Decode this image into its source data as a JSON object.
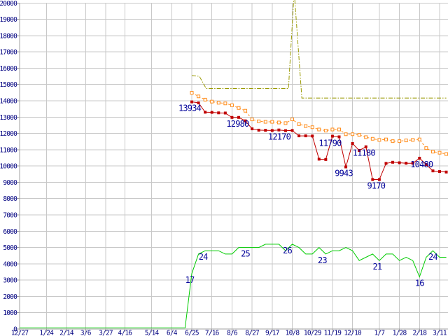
{
  "page": {
    "background": "#ffffff",
    "description": "gnuplot-style time series chart, no title, no legend"
  },
  "chart_data": {
    "type": "line",
    "title": "",
    "xlabel": "",
    "ylabel": "",
    "ylim": [
      0,
      20000
    ],
    "y_tick_step": 1000,
    "y_tick_labels": [
      "0",
      "1000",
      "2000",
      "3000",
      "4000",
      "5000",
      "6000",
      "7000",
      "8000",
      "9000",
      "10000",
      "11000",
      "12000",
      "13000",
      "14000",
      "15000",
      "16000",
      "17000",
      "18000",
      "19000",
      "20000"
    ],
    "x_ticks": [
      {
        "label": "12/27",
        "day": 0
      },
      {
        "label": "1/24",
        "day": 28
      },
      {
        "label": "2/14",
        "day": 49
      },
      {
        "label": "3/6",
        "day": 69
      },
      {
        "label": "3/27",
        "day": 90
      },
      {
        "label": "4/16",
        "day": 110
      },
      {
        "label": "5/14",
        "day": 138
      },
      {
        "label": "6/4",
        "day": 159
      },
      {
        "label": "6/25",
        "day": 180
      },
      {
        "label": "7/16",
        "day": 201
      },
      {
        "label": "8/6",
        "day": 222
      },
      {
        "label": "8/27",
        "day": 243
      },
      {
        "label": "9/17",
        "day": 264
      },
      {
        "label": "10/8",
        "day": 285
      },
      {
        "label": "10/29",
        "day": 306
      },
      {
        "label": "11/19",
        "day": 327
      },
      {
        "label": "12/10",
        "day": 348
      },
      {
        "label": "1/7",
        "day": 376
      },
      {
        "label": "1/28",
        "day": 397
      },
      {
        "label": "2/18",
        "day": 418
      },
      {
        "label": "3/11",
        "day": 439
      }
    ],
    "x_day_span": [
      0,
      446
    ],
    "weekly_x": {
      "start_day": 180,
      "step_days": 7,
      "count": 39
    },
    "grid": true,
    "legend": "none",
    "colors": {
      "grid": "#c8c8c8",
      "axis": "#a0a0a0",
      "tick_text": "#000080",
      "label_text": "#000099",
      "red_series": "#c00000",
      "orange_series": "#ff8c1a",
      "olive_series": "#999900",
      "green_series": "#00cc00"
    },
    "series": [
      {
        "name": "weekly-value",
        "color": "#c00000",
        "style": "solid",
        "marker": "filled-square",
        "values": [
          13934,
          13870,
          13300,
          13290,
          13260,
          13250,
          12980,
          12980,
          12770,
          12280,
          12200,
          12190,
          12180,
          12210,
          12170,
          12180,
          11850,
          11850,
          11840,
          10420,
          10400,
          11830,
          11790,
          9943,
          11380,
          10950,
          11180,
          9170,
          9170,
          10160,
          10230,
          10200,
          10170,
          10170,
          10480,
          10090,
          9700,
          9660,
          9630
        ],
        "point_labels": [
          {
            "day": 180,
            "text": "13934",
            "dx": -3
          },
          {
            "day": 222,
            "text": "12980",
            "dx": 8
          },
          {
            "day": 278,
            "text": "12170",
            "dx": -9
          },
          {
            "day": 334,
            "text": "11790",
            "dx": -13
          },
          {
            "day": 341,
            "text": "9943",
            "dx": -3
          },
          {
            "day": 362,
            "text": "11180",
            "dx": -3
          },
          {
            "day": 369,
            "text": "9170",
            "dx": 5
          },
          {
            "day": 418,
            "text": "10480",
            "dx": 3
          }
        ]
      },
      {
        "name": "smoothed-average",
        "color": "#ff8c1a",
        "style": "dashed",
        "marker": "open-square",
        "values": [
          14490,
          14270,
          14070,
          13950,
          13880,
          13840,
          13730,
          13560,
          13390,
          12860,
          12740,
          12710,
          12710,
          12670,
          12630,
          12860,
          12570,
          12450,
          12380,
          12240,
          12170,
          12240,
          12240,
          11950,
          11950,
          11910,
          11770,
          11670,
          11600,
          11630,
          11525,
          11525,
          11570,
          11600,
          11630,
          11095,
          10880,
          10815,
          10735
        ],
        "point_labels": []
      },
      {
        "name": "reference-level",
        "color": "#999900",
        "style": "dash-dot",
        "marker": "none",
        "points": [
          [
            180,
            15550
          ],
          [
            188,
            15500
          ],
          [
            195,
            14750
          ],
          [
            281,
            14750
          ],
          [
            287,
            20700
          ],
          [
            295,
            14170
          ],
          [
            446,
            14170
          ]
        ],
        "note": "spike near 10/8 is clipped at top of plot (exceeds 20000)"
      },
      {
        "name": "weekly-count",
        "color": "#00cc00",
        "style": "solid",
        "marker": "none",
        "value_scale": 200,
        "lead_points": [
          [
            0,
            0
          ],
          [
            173,
            0
          ]
        ],
        "values": [
          17,
          23,
          24,
          24,
          24,
          23,
          23,
          25,
          25,
          25,
          25,
          26,
          26,
          26,
          24,
          26,
          25,
          23,
          23,
          25,
          23,
          24,
          24,
          25,
          24,
          21,
          22,
          23,
          21,
          23,
          23,
          21,
          22,
          21,
          16,
          22,
          24,
          22,
          22
        ],
        "point_labels": [
          {
            "day": 180,
            "text": "17",
            "dx": -3
          },
          {
            "day": 194,
            "text": "24",
            "dx": -3
          },
          {
            "day": 236,
            "text": "25",
            "dx": 0
          },
          {
            "day": 285,
            "text": "26",
            "dx": -7
          },
          {
            "day": 320,
            "text": "23",
            "dx": -5
          },
          {
            "day": 376,
            "text": "21",
            "dx": -3
          },
          {
            "day": 418,
            "text": "16",
            "dx": 0
          },
          {
            "day": 432,
            "text": "24",
            "dx": 0
          }
        ]
      }
    ]
  }
}
